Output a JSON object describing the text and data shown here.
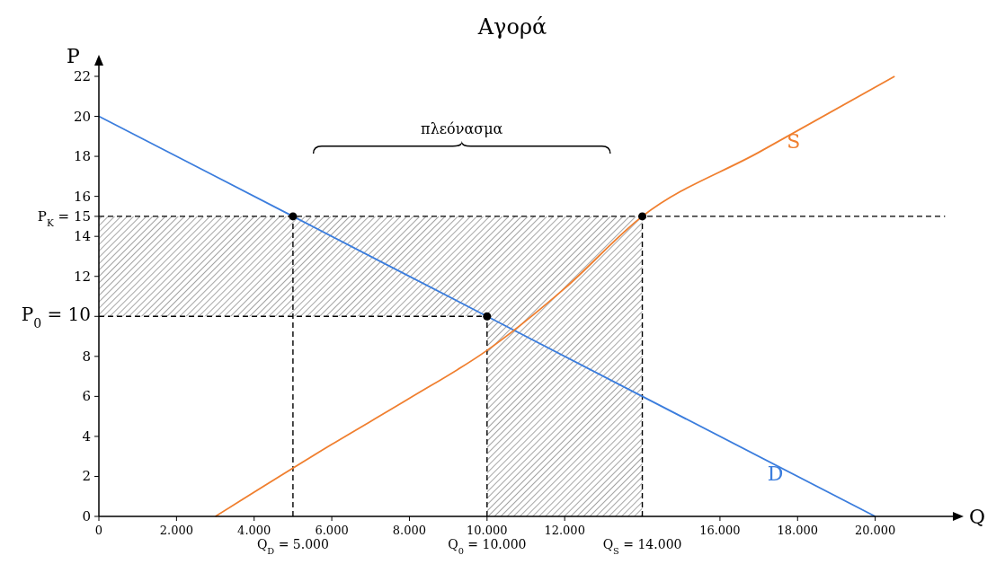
{
  "chart_data": {
    "type": "line",
    "title": "Αγορά",
    "xlabel": "Q",
    "ylabel": "P",
    "xlim": [
      0,
      22000
    ],
    "ylim": [
      0,
      22
    ],
    "xticks": [
      0,
      {
        "value": 2000,
        "label": "2.000"
      },
      {
        "value": 4000,
        "label": "4.000"
      },
      {
        "value": 6000,
        "label": "6.000"
      },
      {
        "value": 8000,
        "label": "8.000"
      },
      {
        "value": 10000,
        "label": "10.000"
      },
      {
        "value": 12000,
        "label": "12.000"
      },
      {
        "value": 16000,
        "label": "16.000"
      },
      {
        "value": 18000,
        "label": "18.000"
      },
      {
        "value": 20000,
        "label": "20.000"
      }
    ],
    "yticks": [
      0,
      2,
      4,
      6,
      8,
      {
        "value": 10,
        "label": "P$_{0}$ = 10"
      },
      12,
      14,
      {
        "value": 15,
        "label": "P$_{K}$ = 15"
      },
      16,
      18,
      20,
      22
    ],
    "grid": false,
    "series": [
      {
        "color": "#000000",
        "line_style": "dashed",
        "x": [
          0,
          10000,
          10000,
          14000,
          21800
        ],
        "values": [
          15,
          15,
          15,
          15,
          15
        ],
        "lower": [
          10,
          10,
          0,
          0,
          null
        ],
        "upper": [
          15,
          15,
          15,
          15,
          null
        ]
      },
      {
        "color": "#000000",
        "line_style": "dashed",
        "x": [
          0,
          10000
        ],
        "values": [
          10,
          10
        ]
      },
      {
        "color": "#000000",
        "line_style": "dashed",
        "x": [
          5000,
          5000
        ],
        "values": [
          0,
          15
        ]
      },
      {
        "color": "#000000",
        "line_style": "dashed",
        "x": [
          10000,
          10000
        ],
        "values": [
          0,
          10
        ]
      },
      {
        "color": "#000000",
        "line_style": "dashed",
        "x": [
          14000,
          14000
        ],
        "values": [
          0,
          15
        ]
      },
      {
        "name": "D",
        "color": "#3b7ddd",
        "x": [
          0,
          5000,
          10000,
          20000
        ],
        "values": [
          20,
          15,
          10,
          0
        ]
      },
      {
        "name": "S",
        "color": "#f07f2f",
        "x": [
          3000,
          6000,
          8000,
          10000,
          12000,
          14000,
          17000,
          20500
        ],
        "values": [
          0,
          3.6,
          5.9,
          8.3,
          11.4,
          15,
          18.2,
          22
        ]
      },
      {
        "type": "scatter",
        "color": "#000000",
        "marker": "circle",
        "x": [
          5000,
          10000,
          14000
        ],
        "values": [
          15,
          10,
          15
        ]
      }
    ],
    "annotations": [
      "πλεόνασμα",
      {
        "text": "Q$_{D}$ = 5.000",
        "x": 5000,
        "y": 0
      },
      {
        "text": "Q$_{0}$ = 10.000",
        "x": 10000,
        "y": 0
      },
      {
        "text": "Q$_{S}$ = 14.000",
        "x": 14000,
        "y": 0
      }
    ]
  }
}
